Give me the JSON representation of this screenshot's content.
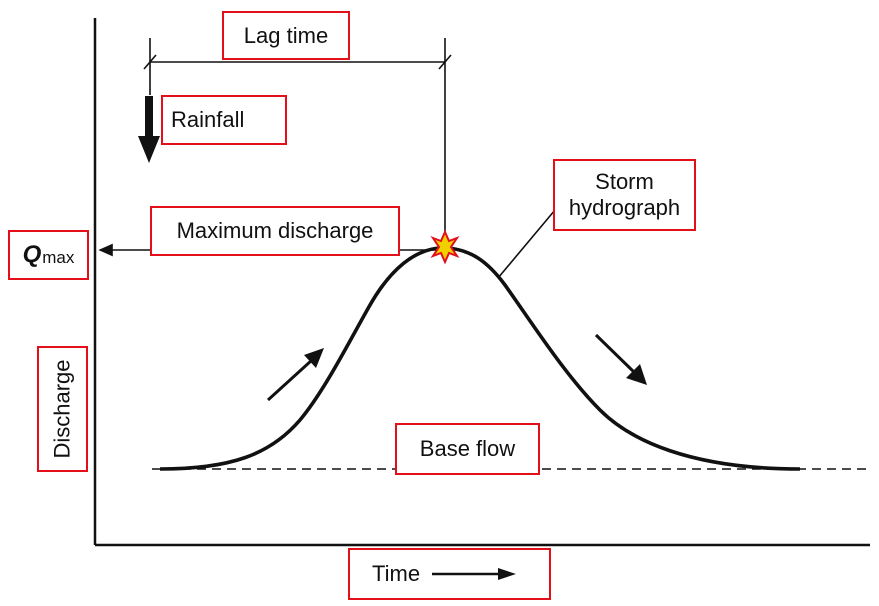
{
  "labels": {
    "lag_time": "Lag time",
    "rainfall": "Rainfall",
    "maximum_discharge": "Maximum discharge",
    "storm_hydrograph_line1": "Storm",
    "storm_hydrograph_line2": "hydrograph",
    "q_symbol": "Q",
    "q_subscript": "max",
    "discharge": "Discharge",
    "base_flow": "Base flow",
    "time": "Time"
  },
  "colors": {
    "annotation_box": "#e3101a",
    "peak_marker_fill": "#f2d000",
    "peak_marker_outline": "#e3101a",
    "ink": "#111111"
  }
}
